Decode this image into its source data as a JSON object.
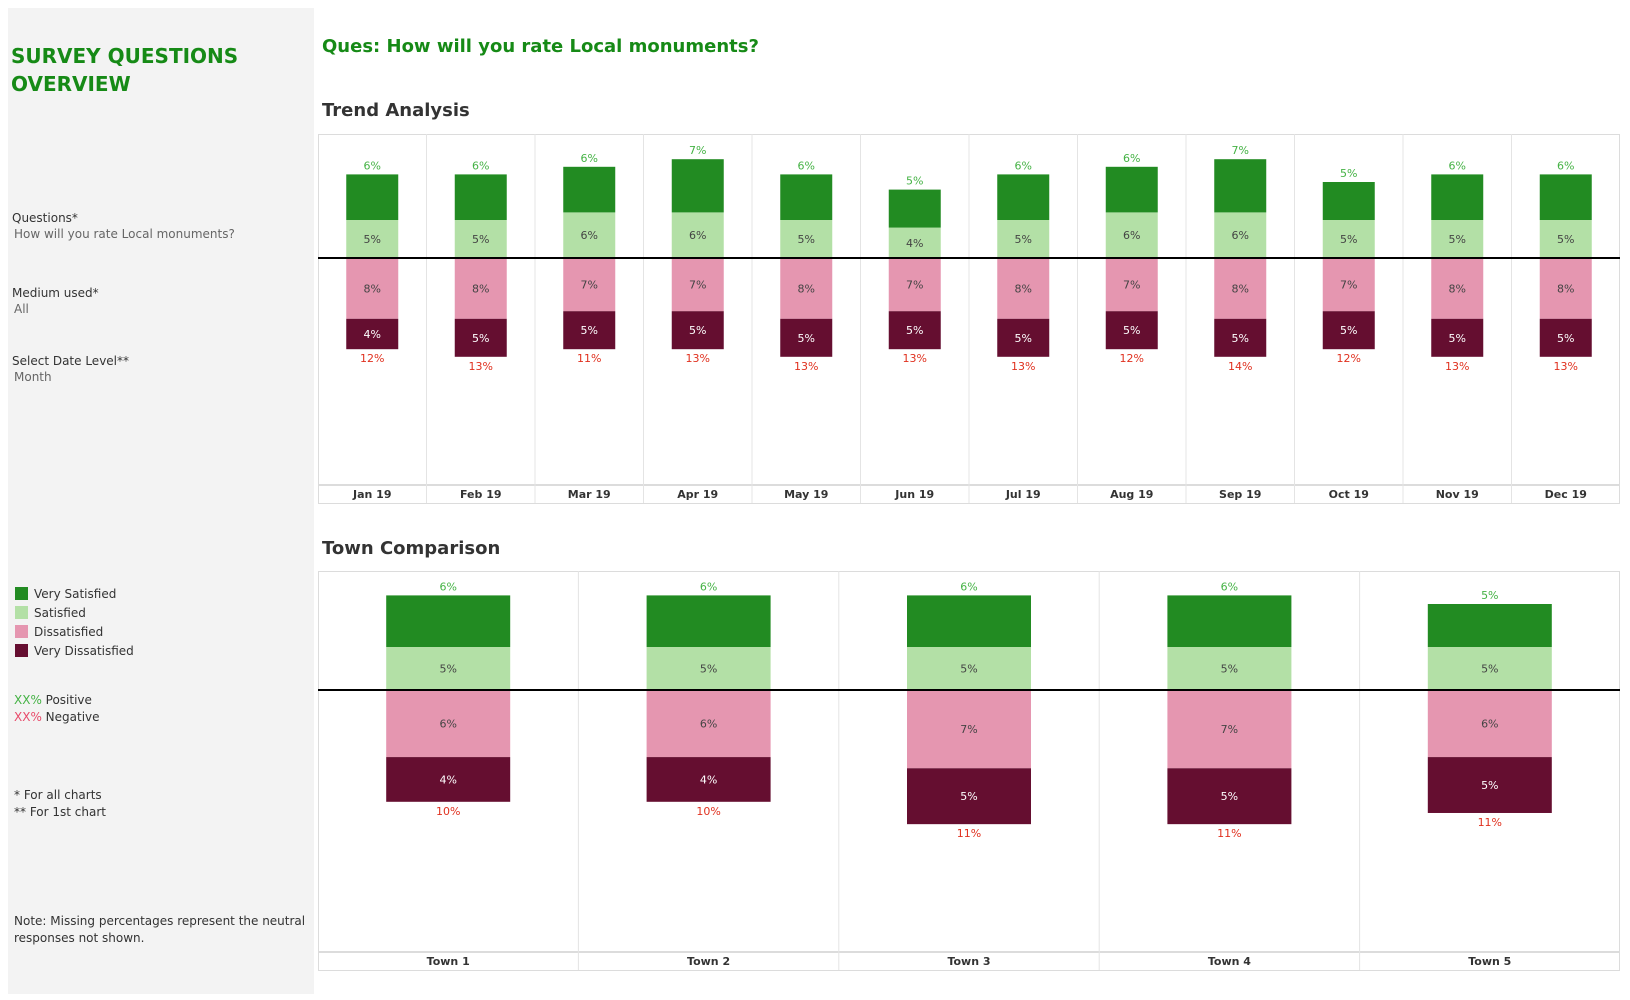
{
  "sidebar": {
    "title": "SURVEY QUESTIONS OVERVIEW",
    "filters": [
      {
        "label": "Questions*",
        "value": "How will you rate Local monuments?"
      },
      {
        "label": "Medium used*",
        "value": "All"
      },
      {
        "label": "Select Date Level**",
        "value": "Month"
      }
    ],
    "legend": [
      {
        "label": "Very Satisfied",
        "color": "#228b22"
      },
      {
        "label": "Satisfied",
        "color": "#b3e0a6"
      },
      {
        "label": "Dissatisfied",
        "color": "#e596b0"
      },
      {
        "label": "Very Dissatisfied",
        "color": "#650e30"
      }
    ],
    "positive": {
      "marker": "XX%",
      "label": " Positive",
      "color": "#44b244"
    },
    "negative": {
      "marker": "XX%",
      "label": " Negative",
      "color": "#e84a6a"
    },
    "footnote1": "* For all charts",
    "footnote2": "** For 1st chart",
    "note_line1": "Note: Missing percentages represent the neutral",
    "note_line2": "responses not shown."
  },
  "question": "Ques: How will you rate Local monuments?",
  "sections": {
    "trend_title": "Trend Analysis",
    "town_title": "Town Comparison"
  },
  "chart_data": [
    {
      "type": "bar",
      "title": "Trend Analysis",
      "stacked": "diverging",
      "categories": [
        "Jan 19",
        "Feb 19",
        "Mar 19",
        "Apr 19",
        "May 19",
        "Jun 19",
        "Jul 19",
        "Aug 19",
        "Sep 19",
        "Oct 19",
        "Nov 19",
        "Dec 19"
      ],
      "series": [
        {
          "name": "Very Satisfied",
          "values": [
            6,
            6,
            6,
            7,
            6,
            5,
            6,
            6,
            7,
            5,
            6,
            6
          ],
          "color": "#228b22",
          "direction": "up"
        },
        {
          "name": "Satisfied",
          "values": [
            5,
            5,
            6,
            6,
            5,
            4,
            5,
            6,
            6,
            5,
            5,
            5
          ],
          "color": "#b3e0a6",
          "direction": "up"
        },
        {
          "name": "Dissatisfied",
          "values": [
            8,
            8,
            7,
            7,
            8,
            7,
            8,
            7,
            8,
            7,
            8,
            8
          ],
          "color": "#e596b0",
          "direction": "down"
        },
        {
          "name": "Very Dissatisfied",
          "values": [
            4,
            5,
            5,
            5,
            5,
            5,
            5,
            5,
            5,
            5,
            5,
            5
          ],
          "color": "#650e30",
          "direction": "down"
        }
      ],
      "positive_totals": [
        "6%",
        "6%",
        "6%",
        "7%",
        "6%",
        "5%",
        "6%",
        "6%",
        "7%",
        "5%",
        "6%",
        "6%"
      ],
      "negative_totals": [
        "12%",
        "13%",
        "11%",
        "13%",
        "13%",
        "13%",
        "13%",
        "12%",
        "14%",
        "12%",
        "13%",
        "13%"
      ]
    },
    {
      "type": "bar",
      "title": "Town Comparison",
      "stacked": "diverging",
      "categories": [
        "Town 1",
        "Town 2",
        "Town 3",
        "Town 4",
        "Town 5"
      ],
      "series": [
        {
          "name": "Very Satisfied",
          "values": [
            6,
            6,
            6,
            6,
            5
          ],
          "color": "#228b22",
          "direction": "up"
        },
        {
          "name": "Satisfied",
          "values": [
            5,
            5,
            5,
            5,
            5
          ],
          "color": "#b3e0a6",
          "direction": "up"
        },
        {
          "name": "Dissatisfied",
          "values": [
            6,
            6,
            7,
            7,
            6
          ],
          "color": "#e596b0",
          "direction": "down"
        },
        {
          "name": "Very Dissatisfied",
          "values": [
            4,
            4,
            5,
            5,
            5
          ],
          "color": "#650e30",
          "direction": "down"
        }
      ],
      "positive_totals": [
        "6%",
        "6%",
        "6%",
        "6%",
        "5%"
      ],
      "negative_totals": [
        "10%",
        "10%",
        "11%",
        "11%",
        "11%"
      ]
    }
  ]
}
